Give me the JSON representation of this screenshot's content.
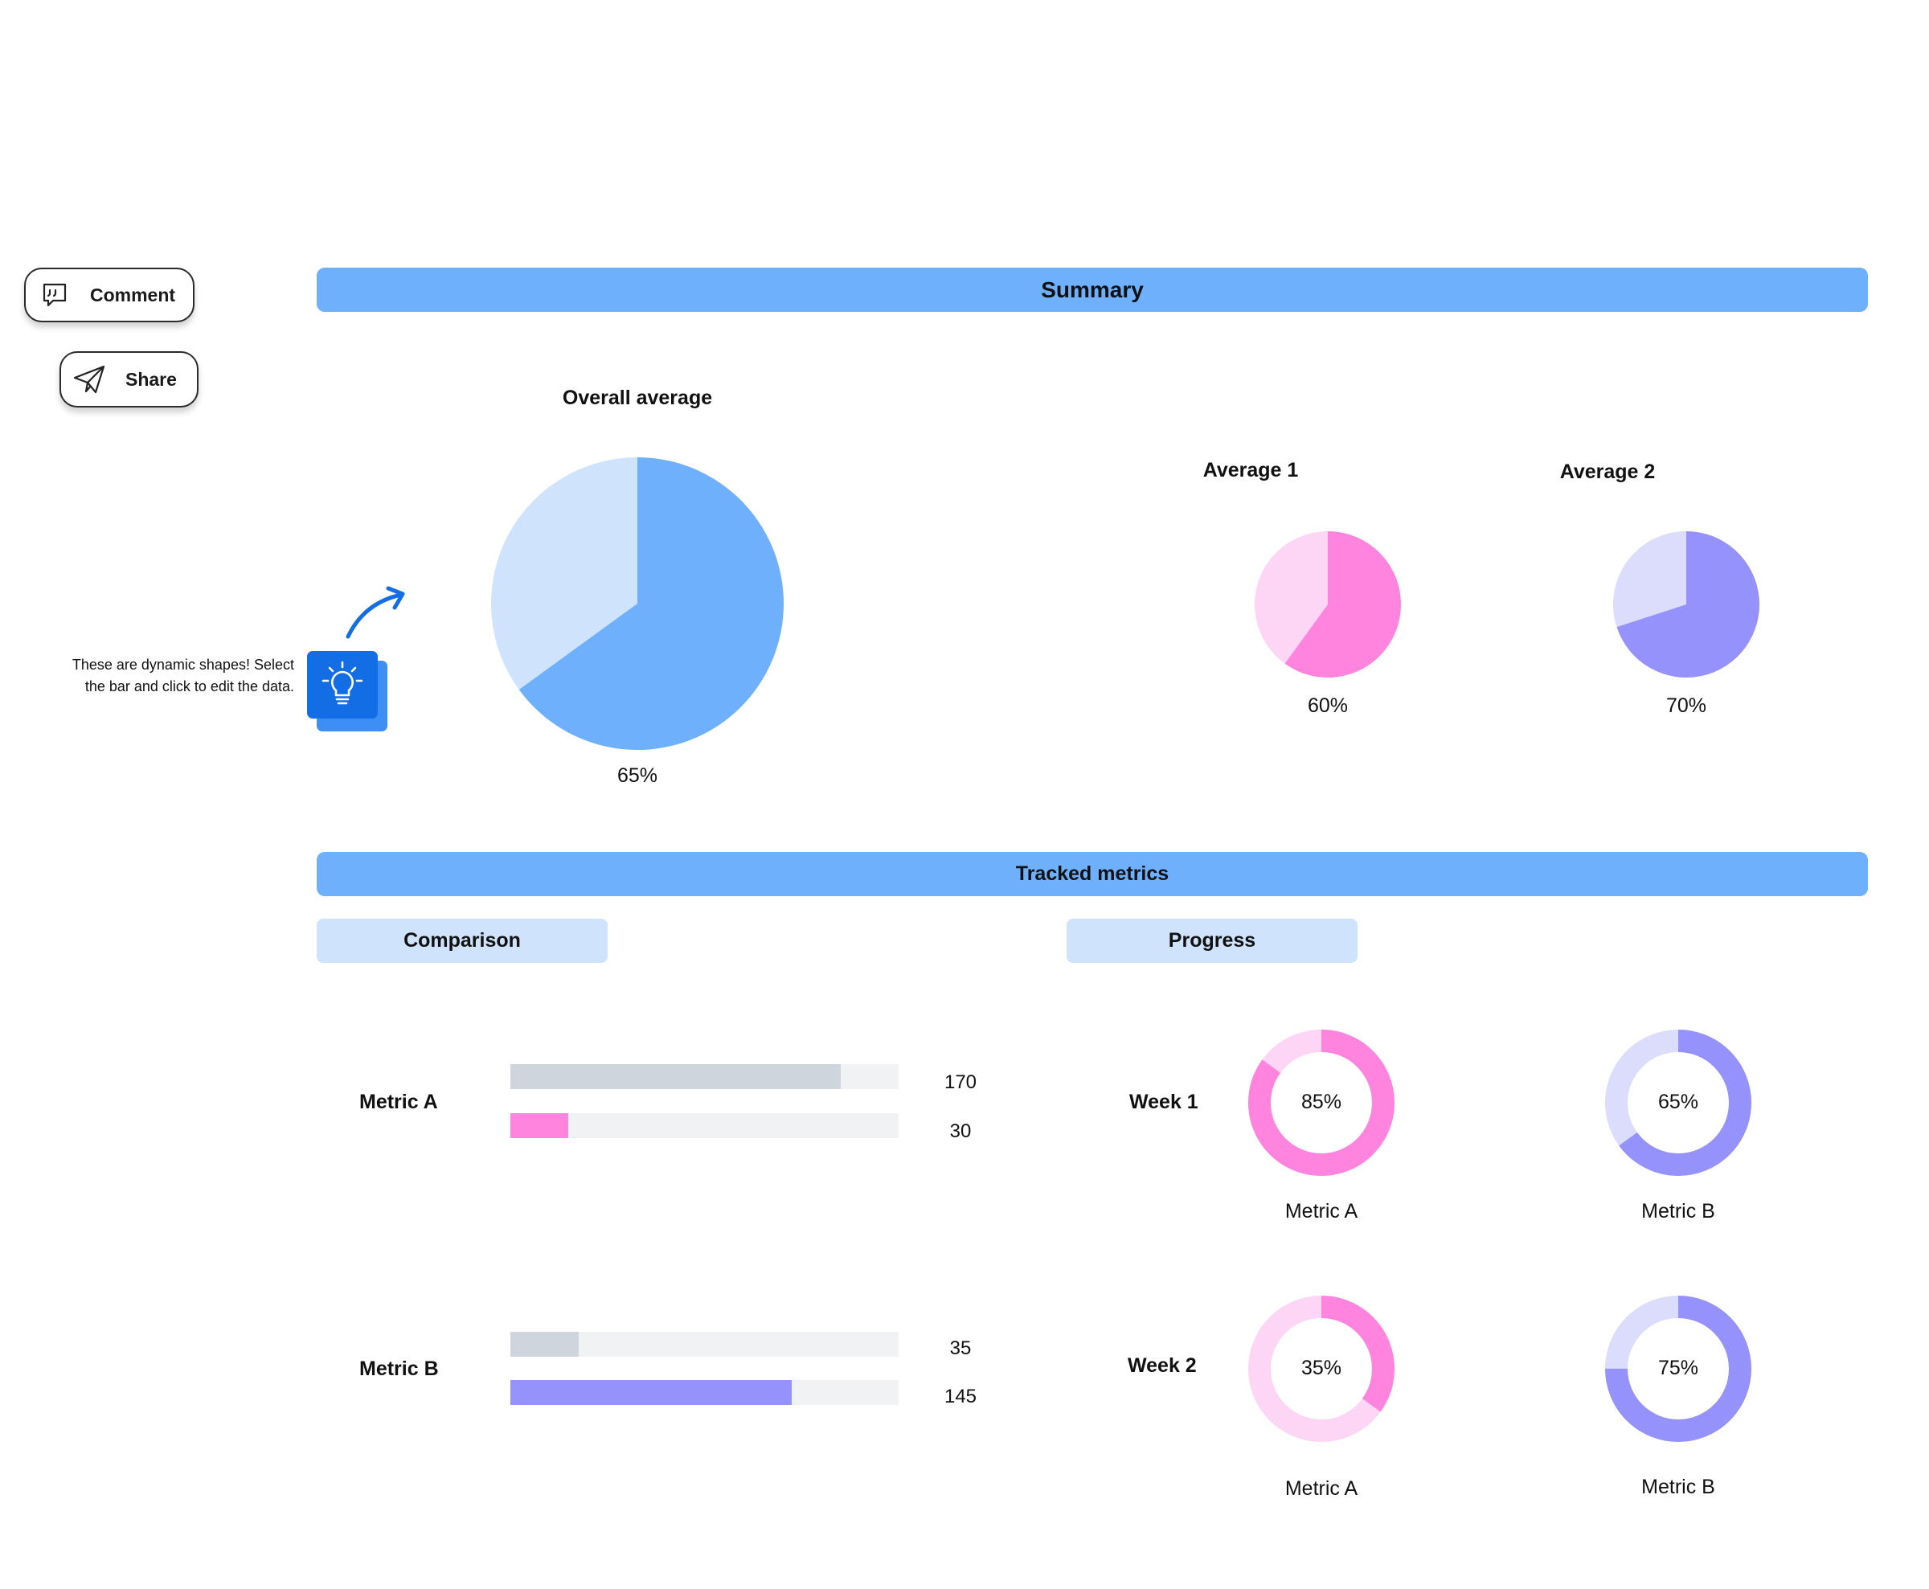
{
  "toolbar": {
    "comment_label": "Comment",
    "share_label": "Share"
  },
  "summary": {
    "header": "Summary"
  },
  "tip": {
    "text_line1": "These are dynamic shapes! Select",
    "text_line2": "the bar and click to edit the data."
  },
  "tracked": {
    "header": "Tracked metrics",
    "comparison_tab": "Comparison",
    "progress_tab": "Progress"
  },
  "colors": {
    "blue": "#6eb0fc",
    "blue_light": "#cfe4fc",
    "pink": "#ff84de",
    "pink_light": "#fed6f5",
    "purple": "#9592fc",
    "purple_light": "#dcdcfc",
    "gray_bar": "#cfd5dc",
    "track": "#f1f2f4"
  },
  "chart_data": [
    {
      "type": "pie",
      "title": "Overall average",
      "value_percent": 65,
      "label": "65%",
      "color": "#6eb0fc",
      "remainder_color": "#cfe4fc"
    },
    {
      "type": "pie",
      "title": "Average 1",
      "value_percent": 60,
      "label": "60%",
      "color": "#ff84de",
      "remainder_color": "#fed6f5"
    },
    {
      "type": "pie",
      "title": "Average 2",
      "value_percent": 70,
      "label": "70%",
      "color": "#9592fc",
      "remainder_color": "#dcdcfc"
    },
    {
      "type": "bar",
      "title": "Comparison",
      "max": 200,
      "groups": [
        {
          "label": "Metric A",
          "bars": [
            {
              "value": 170,
              "label": "170",
              "color": "#cfd5dc"
            },
            {
              "value": 30,
              "label": "30",
              "color": "#ff84de"
            }
          ]
        },
        {
          "label": "Metric B",
          "bars": [
            {
              "value": 35,
              "label": "35",
              "color": "#cfd5dc"
            },
            {
              "value": 145,
              "label": "145",
              "color": "#9592fc"
            }
          ]
        }
      ]
    },
    {
      "type": "donut",
      "title": "Progress",
      "rows": [
        {
          "label": "Week 1",
          "items": [
            {
              "caption": "Metric A",
              "value_percent": 85,
              "label": "85%",
              "color": "#ff84de",
              "remainder_color": "#fed6f5"
            },
            {
              "caption": "Metric B",
              "value_percent": 65,
              "label": "65%",
              "color": "#9592fc",
              "remainder_color": "#dcdcfc"
            }
          ]
        },
        {
          "label": "Week 2",
          "items": [
            {
              "caption": "Metric A",
              "value_percent": 35,
              "label": "35%",
              "color": "#ff84de",
              "remainder_color": "#fed6f5"
            },
            {
              "caption": "Metric B",
              "value_percent": 75,
              "label": "75%",
              "color": "#9592fc",
              "remainder_color": "#dcdcfc"
            }
          ]
        }
      ]
    }
  ]
}
